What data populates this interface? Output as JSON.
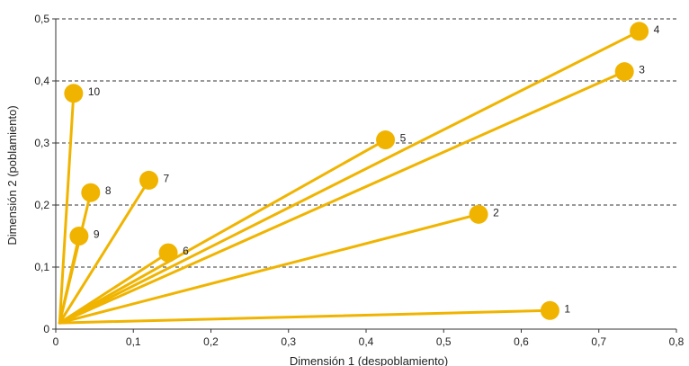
{
  "chart_data": {
    "type": "scatter",
    "xlabel": "Dimensión 1 (despoblamiento)",
    "ylabel": "Dimensión 2 (poblamiento)",
    "xlim": [
      0,
      0.8
    ],
    "ylim": [
      0,
      0.5
    ],
    "x_ticks": [
      "0",
      "0,1",
      "0,2",
      "0,3",
      "0,4",
      "0,5",
      "0,6",
      "0,7",
      "0,8"
    ],
    "y_ticks": [
      "0",
      "0,1",
      "0,2",
      "0,3",
      "0,4",
      "0,5"
    ],
    "grid": "horizontal dashed",
    "origin": [
      0.005,
      0.01
    ],
    "point_color": "#f0b400",
    "series": [
      {
        "points": [
          {
            "label": "1",
            "x": 0.637,
            "y": 0.03
          },
          {
            "label": "2",
            "x": 0.545,
            "y": 0.185
          },
          {
            "label": "3",
            "x": 0.733,
            "y": 0.415
          },
          {
            "label": "4",
            "x": 0.752,
            "y": 0.48
          },
          {
            "label": "5",
            "x": 0.425,
            "y": 0.305
          },
          {
            "label": "6",
            "x": 0.145,
            "y": 0.123
          },
          {
            "label": "7",
            "x": 0.12,
            "y": 0.24
          },
          {
            "label": "8",
            "x": 0.045,
            "y": 0.22
          },
          {
            "label": "9",
            "x": 0.03,
            "y": 0.15
          },
          {
            "label": "10",
            "x": 0.023,
            "y": 0.38
          }
        ]
      }
    ]
  }
}
